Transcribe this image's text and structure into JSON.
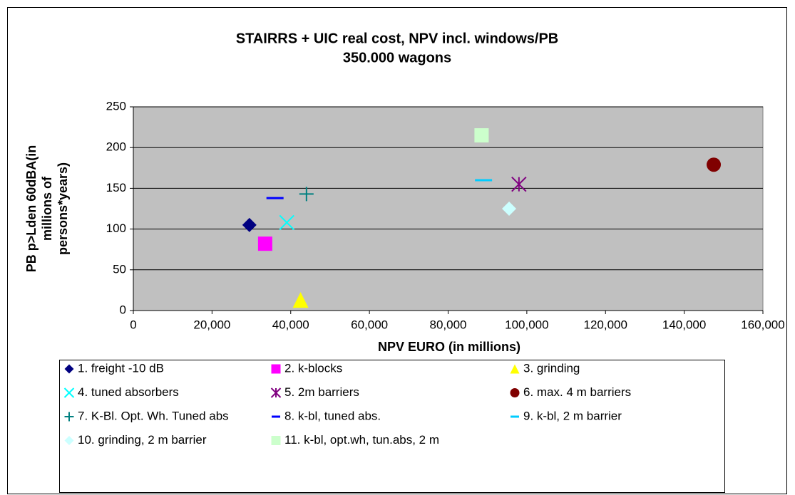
{
  "chart_data": {
    "type": "scatter",
    "title": "STAIRRS + UIC real cost,  NPV incl. windows/PB",
    "subtitle": "350.000 wagons",
    "xlabel": "NPV EURO (in millions)",
    "ylabel": [
      "PB p>Lden 60dBA(in",
      "millions of",
      "persons*years)"
    ],
    "xlim": [
      0,
      160000
    ],
    "xticks": [
      0,
      {
        "value": 20000,
        "label": "20,000"
      },
      {
        "value": 40000,
        "label": "40,000"
      },
      {
        "value": 60000,
        "label": "60,000"
      },
      {
        "value": 80000,
        "label": "80,000"
      },
      {
        "value": 100000,
        "label": "100,000"
      },
      {
        "value": 120000,
        "label": "120,000"
      },
      {
        "value": 140000,
        "label": "140,000"
      },
      {
        "value": 160000,
        "label": "160,000"
      }
    ],
    "ylim": [
      0,
      250
    ],
    "yticks": [
      0,
      50,
      100,
      150,
      200,
      250
    ],
    "grid": true,
    "legend": "bottom",
    "series": [
      {
        "name": "1. freight -10 dB",
        "color": "#000080",
        "marker": "diamond",
        "x": [
          29500
        ],
        "values": [
          105
        ]
      },
      {
        "name": "2. k-blocks",
        "color": "#FF00FF",
        "marker": "square",
        "x": [
          33500
        ],
        "values": [
          82
        ]
      },
      {
        "name": "3. grinding",
        "color": "#FFFF00",
        "marker": "triangle",
        "x": [
          42500
        ],
        "values": [
          13
        ]
      },
      {
        "name": "4. tuned absorbers",
        "color": "#00FFFF",
        "marker": "x",
        "x": [
          39000
        ],
        "values": [
          108
        ]
      },
      {
        "name": "5. 2m barriers",
        "color": "#800080",
        "marker": "star",
        "x": [
          98000
        ],
        "values": [
          155
        ]
      },
      {
        "name": "6. max. 4 m barriers",
        "color": "#800000",
        "marker": "circle",
        "x": [
          147500
        ],
        "values": [
          179
        ]
      },
      {
        "name": "7. K-Bl. Opt. Wh. Tuned abs",
        "color": "#008080",
        "marker": "plus",
        "x": [
          44000
        ],
        "values": [
          143
        ]
      },
      {
        "name": "8. k-bl, tuned abs.",
        "color": "#0000FF",
        "marker": "dash",
        "x": [
          36000
        ],
        "values": [
          138
        ]
      },
      {
        "name": "9. k-bl, 2 m barrier",
        "color": "#00CCFF",
        "marker": "dash",
        "x": [
          89000
        ],
        "values": [
          160
        ]
      },
      {
        "name": "10. grinding, 2 m barrier",
        "color": "#CCFFFF",
        "marker": "diamond",
        "x": [
          95500
        ],
        "values": [
          125
        ]
      },
      {
        "name": "11. k-bl, opt.wh, tun.abs, 2 m",
        "color": "#CCFFCC",
        "marker": "square",
        "x": [
          88500
        ],
        "values": [
          215
        ]
      }
    ]
  }
}
